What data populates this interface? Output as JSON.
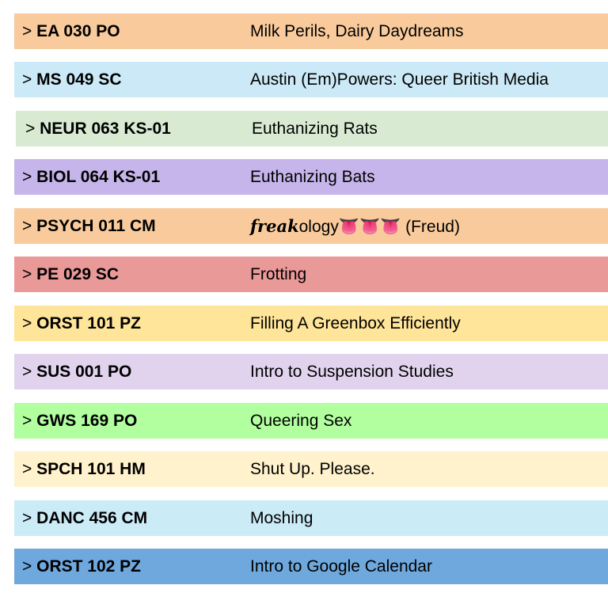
{
  "rows": [
    {
      "marker": ">",
      "code": "EA 030 PO",
      "title": [
        {
          "text": "Milk Perils, Dairy Daydreams"
        }
      ],
      "color": "#f9cb9c"
    },
    {
      "marker": ">",
      "code": "MS 049 SC",
      "title": [
        {
          "text": "Austin (Em)Powers: Queer British Media"
        }
      ],
      "color": "#cbe9f6"
    },
    {
      "marker": ">",
      "code": "NEUR 063 KS-01",
      "title": [
        {
          "text": "Euthanizing Rats"
        }
      ],
      "color": "#d9ead3"
    },
    {
      "marker": ">",
      "code": "BIOL 064 KS-01",
      "title": [
        {
          "text": "Euthanizing Bats"
        }
      ],
      "color": "#c5b5ea"
    },
    {
      "marker": ">",
      "code": "PSYCH 011 CM",
      "title": [
        {
          "text": "freak",
          "style": "script"
        },
        {
          "text": "ology👅👅👅 (Freud)"
        }
      ],
      "color": "#f9cb9c"
    },
    {
      "marker": ">",
      "code": "PE 029 SC",
      "title": [
        {
          "text": "Frotting"
        }
      ],
      "color": "#ea9999"
    },
    {
      "marker": ">",
      "code": "ORST 101 PZ",
      "title": [
        {
          "text": "Filling A Greenbox Efficiently"
        }
      ],
      "color": "#ffe599"
    },
    {
      "marker": ">",
      "code": "SUS 001 PO",
      "title": [
        {
          "text": "Intro to Suspension Studies"
        }
      ],
      "color": "#e1d3ed"
    },
    {
      "marker": ">",
      "code": "GWS 169 PO",
      "title": [
        {
          "text": "Queering Sex"
        }
      ],
      "color": "#b2ffa0"
    },
    {
      "marker": ">",
      "code": "SPCH 101 HM",
      "title": [
        {
          "text": "Shut Up. Please."
        }
      ],
      "color": "#fff2cc"
    },
    {
      "marker": ">",
      "code": "DANC 456 CM",
      "title": [
        {
          "text": "Moshing"
        }
      ],
      "color": "#cbebf7"
    },
    {
      "marker": ">",
      "code": "ORST 102 PZ",
      "title": [
        {
          "text": "Intro to Google Calendar"
        }
      ],
      "color": "#6fa8dc"
    }
  ]
}
